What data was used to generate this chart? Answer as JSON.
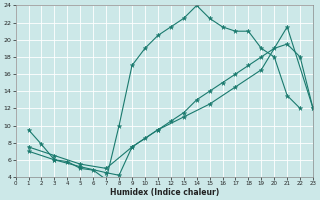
{
  "xlabel": "Humidex (Indice chaleur)",
  "bg_color": "#cce8e8",
  "grid_color": "#ffffff",
  "line_color": "#1a7a6e",
  "line1_x": [
    1,
    2,
    3,
    4,
    5,
    6,
    7,
    8,
    9,
    10,
    11,
    12,
    13,
    14,
    15,
    16,
    17,
    18,
    19,
    20,
    21,
    22
  ],
  "line1_y": [
    9.5,
    7.8,
    6.0,
    5.8,
    5.0,
    4.8,
    3.7,
    10.0,
    17.0,
    19.0,
    20.5,
    21.5,
    22.5,
    24.0,
    22.5,
    21.5,
    21.0,
    21.0,
    19.0,
    18.0,
    13.5,
    12.0
  ],
  "line2_x": [
    1,
    3,
    5,
    7,
    8,
    9,
    10,
    11,
    12,
    13,
    14,
    15,
    16,
    17,
    18,
    19,
    20,
    21,
    22,
    23
  ],
  "line2_y": [
    7.0,
    6.0,
    5.2,
    4.5,
    4.2,
    7.5,
    8.5,
    9.5,
    10.5,
    11.5,
    13.0,
    14.0,
    15.0,
    16.0,
    17.0,
    18.0,
    19.0,
    19.5,
    18.0,
    12.0
  ],
  "line3_x": [
    1,
    3,
    5,
    7,
    9,
    11,
    13,
    15,
    17,
    19,
    21,
    23
  ],
  "line3_y": [
    7.5,
    6.5,
    5.5,
    5.0,
    7.5,
    9.5,
    11.0,
    12.5,
    14.5,
    16.5,
    21.5,
    12.0
  ],
  "xlim": [
    0,
    23
  ],
  "ylim": [
    4,
    24
  ],
  "yticks": [
    4,
    6,
    8,
    10,
    12,
    14,
    16,
    18,
    20,
    22,
    24
  ],
  "xticks": [
    0,
    1,
    2,
    3,
    4,
    5,
    6,
    7,
    8,
    9,
    10,
    11,
    12,
    13,
    14,
    15,
    16,
    17,
    18,
    19,
    20,
    21,
    22,
    23
  ]
}
